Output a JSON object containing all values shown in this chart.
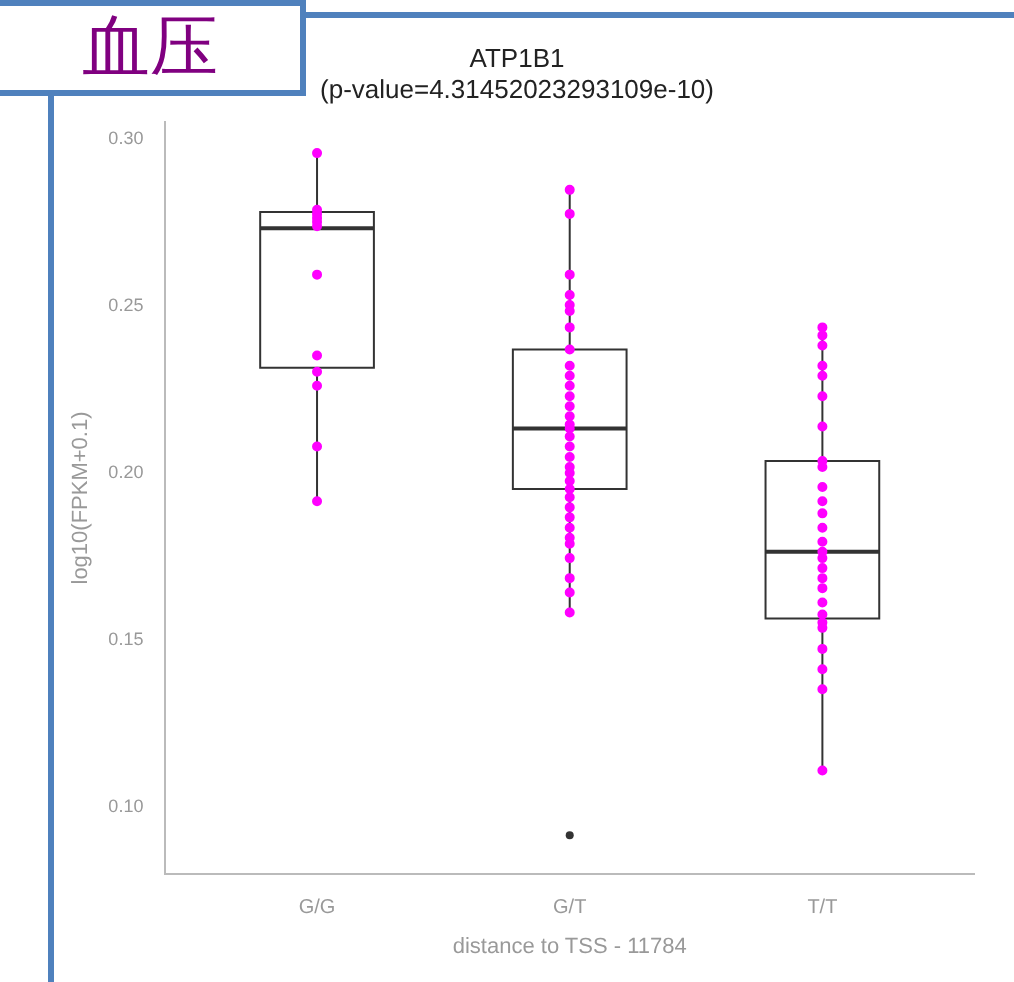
{
  "chart_data": {
    "type": "box",
    "title": "ATP1B1",
    "subtitle": "(p-value=4.31452023293109e-10)",
    "xlabel": "distance to TSS - 11784",
    "ylabel": "log10(FPKM+0.1)",
    "annotations": [
      "血压"
    ],
    "categories": [
      "G/G",
      "G/T",
      "T/T"
    ],
    "boxes": [
      {
        "low": 0.1915,
        "q1": 0.2315,
        "median": 0.2733,
        "q3": 0.2782,
        "high": 0.2958
      },
      {
        "low": 0.1582,
        "q1": 0.1952,
        "median": 0.2133,
        "q3": 0.237,
        "high": 0.2848,
        "outliers": [
          0.0915
        ]
      },
      {
        "low": 0.1109,
        "q1": 0.1564,
        "median": 0.1764,
        "q3": 0.2036,
        "high": 0.2436
      }
    ],
    "series": [
      {
        "type": "scatter",
        "color": "#ff00ff",
        "x": [
          "G/G",
          "G/G",
          "G/G",
          "G/G",
          "G/G",
          "G/G",
          "G/G",
          "G/G",
          "G/G",
          "G/G",
          "G/G",
          "G/G",
          "G/T",
          "G/T",
          "G/T",
          "G/T",
          "G/T",
          "G/T",
          "G/T",
          "G/T",
          "G/T",
          "G/T",
          "G/T",
          "G/T",
          "G/T",
          "G/T",
          "G/T",
          "G/T",
          "G/T",
          "G/T",
          "G/T",
          "G/T",
          "G/T",
          "G/T",
          "G/T",
          "G/T",
          "G/T",
          "G/T",
          "G/T",
          "G/T",
          "G/T",
          "G/T",
          "G/T",
          "G/T",
          "G/T",
          "T/T",
          "T/T",
          "T/T",
          "T/T",
          "T/T",
          "T/T",
          "T/T",
          "T/T",
          "T/T",
          "T/T",
          "T/T",
          "T/T",
          "T/T",
          "T/T",
          "T/T",
          "T/T",
          "T/T",
          "T/T",
          "T/T",
          "T/T",
          "T/T",
          "T/T",
          "T/T",
          "T/T",
          "T/T",
          "T/T",
          "T/T"
        ],
        "values": [
          0.2958,
          0.2788,
          0.2776,
          0.2764,
          0.2752,
          0.2739,
          0.2594,
          0.2352,
          0.2303,
          0.2261,
          0.2079,
          0.1915,
          0.2848,
          0.2776,
          0.2594,
          0.2533,
          0.2503,
          0.2485,
          0.2436,
          0.237,
          0.2321,
          0.2291,
          0.2261,
          0.223,
          0.22,
          0.217,
          0.2145,
          0.2133,
          0.2109,
          0.2079,
          0.2048,
          0.2018,
          0.2,
          0.1976,
          0.1952,
          0.1927,
          0.1897,
          0.1867,
          0.1836,
          0.1806,
          0.1788,
          0.1745,
          0.1685,
          0.1642,
          0.1582,
          0.2436,
          0.2412,
          0.2382,
          0.2321,
          0.2291,
          0.223,
          0.2139,
          0.2036,
          0.2018,
          0.1958,
          0.1915,
          0.1879,
          0.1836,
          0.1794,
          0.1764,
          0.1745,
          0.1715,
          0.1685,
          0.1655,
          0.1612,
          0.1576,
          0.1552,
          0.1536,
          0.1473,
          0.1412,
          0.1352,
          0.1109
        ]
      }
    ],
    "ylim": [
      0.08,
      0.305
    ],
    "yticks": [
      {
        "value": 0.1,
        "label": "0.10"
      },
      0.15,
      {
        "value": 0.2,
        "label": "0.20"
      },
      0.25,
      {
        "value": 0.3,
        "label": "0.30"
      }
    ],
    "marker": "circle"
  }
}
